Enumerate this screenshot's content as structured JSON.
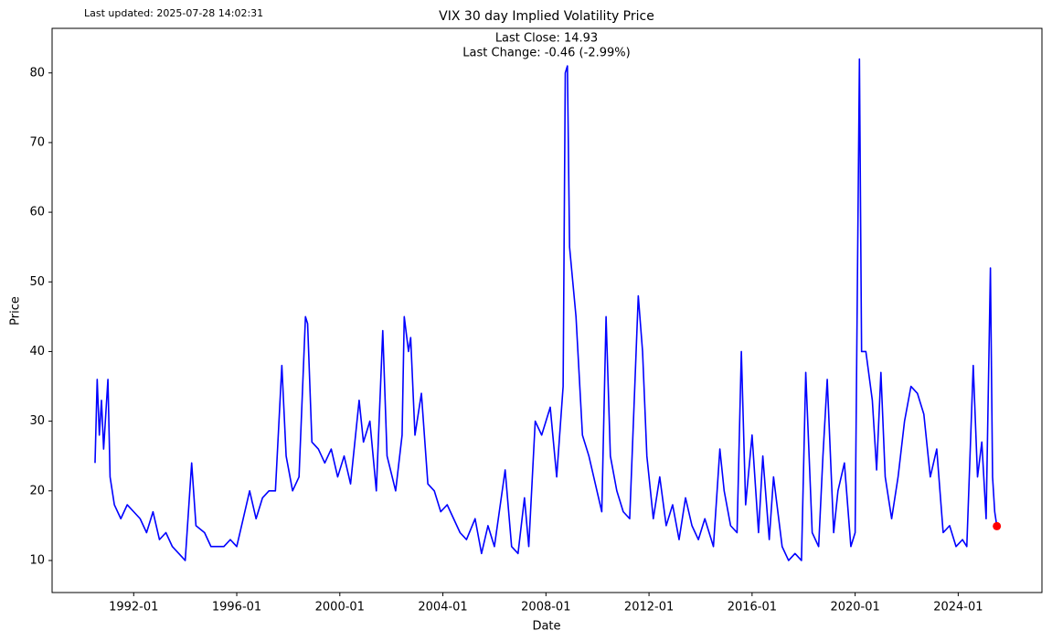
{
  "chart_data": {
    "type": "line",
    "title": "VIX 30 day Implied Volatility Price",
    "x_label": "Date",
    "y_label": "Price",
    "annotations": [
      "Last updated: 2025-07-28 14:02:31",
      "Last Close: 14.93",
      "Last Change: -0.46 (-2.99%)"
    ],
    "xlim": [
      "1988-11",
      "2027-04"
    ],
    "xticks": [
      "1992-01",
      "1996-01",
      "2000-01",
      "2004-01",
      "2008-01",
      "2012-01",
      "2016-01",
      "2020-01",
      "2024-01"
    ],
    "ylim": [
      5.4,
      86.4
    ],
    "yticks": [
      10,
      20,
      30,
      40,
      50,
      60,
      70,
      80
    ],
    "last_point_color": "#ff0000",
    "x": [
      "1990-07",
      "1990-08",
      "1990-09",
      "1990-10",
      "1990-11",
      "1991-01",
      "1991-02",
      "1991-04",
      "1991-07",
      "1991-10",
      "1992-01",
      "1992-04",
      "1992-07",
      "1992-10",
      "1993-01",
      "1993-04",
      "1993-07",
      "1993-10",
      "1994-01",
      "1994-04",
      "1994-06",
      "1994-10",
      "1995-01",
      "1995-04",
      "1995-07",
      "1995-10",
      "1996-01",
      "1996-04",
      "1996-07",
      "1996-10",
      "1997-01",
      "1997-04",
      "1997-07",
      "1997-10",
      "1997-12",
      "1998-03",
      "1998-06",
      "1998-09",
      "1998-10",
      "1998-12",
      "1999-03",
      "1999-06",
      "1999-09",
      "1999-12",
      "2000-03",
      "2000-06",
      "2000-10",
      "2000-12",
      "2001-03",
      "2001-06",
      "2001-09",
      "2001-11",
      "2002-03",
      "2002-06",
      "2002-07",
      "2002-09",
      "2002-10",
      "2002-12",
      "2003-03",
      "2003-06",
      "2003-09",
      "2003-12",
      "2004-03",
      "2004-06",
      "2004-09",
      "2004-12",
      "2005-04",
      "2005-07",
      "2005-10",
      "2006-01",
      "2006-06",
      "2006-09",
      "2006-12",
      "2007-03",
      "2007-05",
      "2007-08",
      "2007-11",
      "2008-01",
      "2008-03",
      "2008-06",
      "2008-09",
      "2008-10",
      "2008-11",
      "2008-12",
      "2009-03",
      "2009-06",
      "2009-09",
      "2009-12",
      "2010-03",
      "2010-05",
      "2010-07",
      "2010-10",
      "2011-01",
      "2011-04",
      "2011-08",
      "2011-10",
      "2011-12",
      "2012-03",
      "2012-06",
      "2012-09",
      "2012-12",
      "2013-03",
      "2013-06",
      "2013-09",
      "2013-12",
      "2014-03",
      "2014-07",
      "2014-10",
      "2014-12",
      "2015-03",
      "2015-06",
      "2015-08",
      "2015-10",
      "2016-01",
      "2016-04",
      "2016-06",
      "2016-09",
      "2016-11",
      "2017-03",
      "2017-06",
      "2017-09",
      "2017-12",
      "2018-02",
      "2018-05",
      "2018-08",
      "2018-10",
      "2018-12",
      "2019-03",
      "2019-05",
      "2019-08",
      "2019-11",
      "2020-01",
      "2020-03",
      "2020-04",
      "2020-06",
      "2020-09",
      "2020-11",
      "2021-01",
      "2021-03",
      "2021-06",
      "2021-09",
      "2021-12",
      "2022-03",
      "2022-06",
      "2022-09",
      "2022-12",
      "2023-03",
      "2023-06",
      "2023-09",
      "2023-12",
      "2024-03",
      "2024-05",
      "2024-08",
      "2024-10",
      "2024-12",
      "2025-02",
      "2025-04",
      "2025-05",
      "2025-06",
      "2025-07"
    ],
    "series": [
      {
        "color": "#0000ff",
        "values": [
          24,
          36,
          28,
          33,
          26,
          36,
          22,
          18,
          16,
          18,
          17,
          16,
          14,
          17,
          13,
          14,
          12,
          11,
          10,
          24,
          15,
          14,
          12,
          12,
          12,
          13,
          12,
          16,
          20,
          16,
          19,
          20,
          20,
          38,
          25,
          20,
          22,
          45,
          44,
          27,
          26,
          24,
          26,
          22,
          25,
          21,
          33,
          27,
          30,
          20,
          43,
          25,
          20,
          28,
          45,
          40,
          42,
          28,
          34,
          21,
          20,
          17,
          18,
          16,
          14,
          13,
          16,
          11,
          15,
          12,
          23,
          12,
          11,
          19,
          12,
          30,
          28,
          30,
          32,
          22,
          35,
          80,
          81,
          55,
          45,
          28,
          25,
          21,
          17,
          45,
          25,
          20,
          17,
          16,
          48,
          40,
          25,
          16,
          22,
          15,
          18,
          13,
          19,
          15,
          13,
          16,
          12,
          26,
          20,
          15,
          14,
          40,
          18,
          28,
          14,
          25,
          13,
          22,
          12,
          10,
          11,
          10,
          37,
          14,
          12,
          25,
          36,
          14,
          20,
          24,
          12,
          14,
          82,
          40,
          40,
          33,
          23,
          37,
          22,
          16,
          22,
          30,
          35,
          34,
          31,
          22,
          26,
          14,
          15,
          12,
          13,
          12,
          38,
          22,
          27,
          16,
          52,
          22,
          17,
          14.93
        ]
      }
    ]
  }
}
